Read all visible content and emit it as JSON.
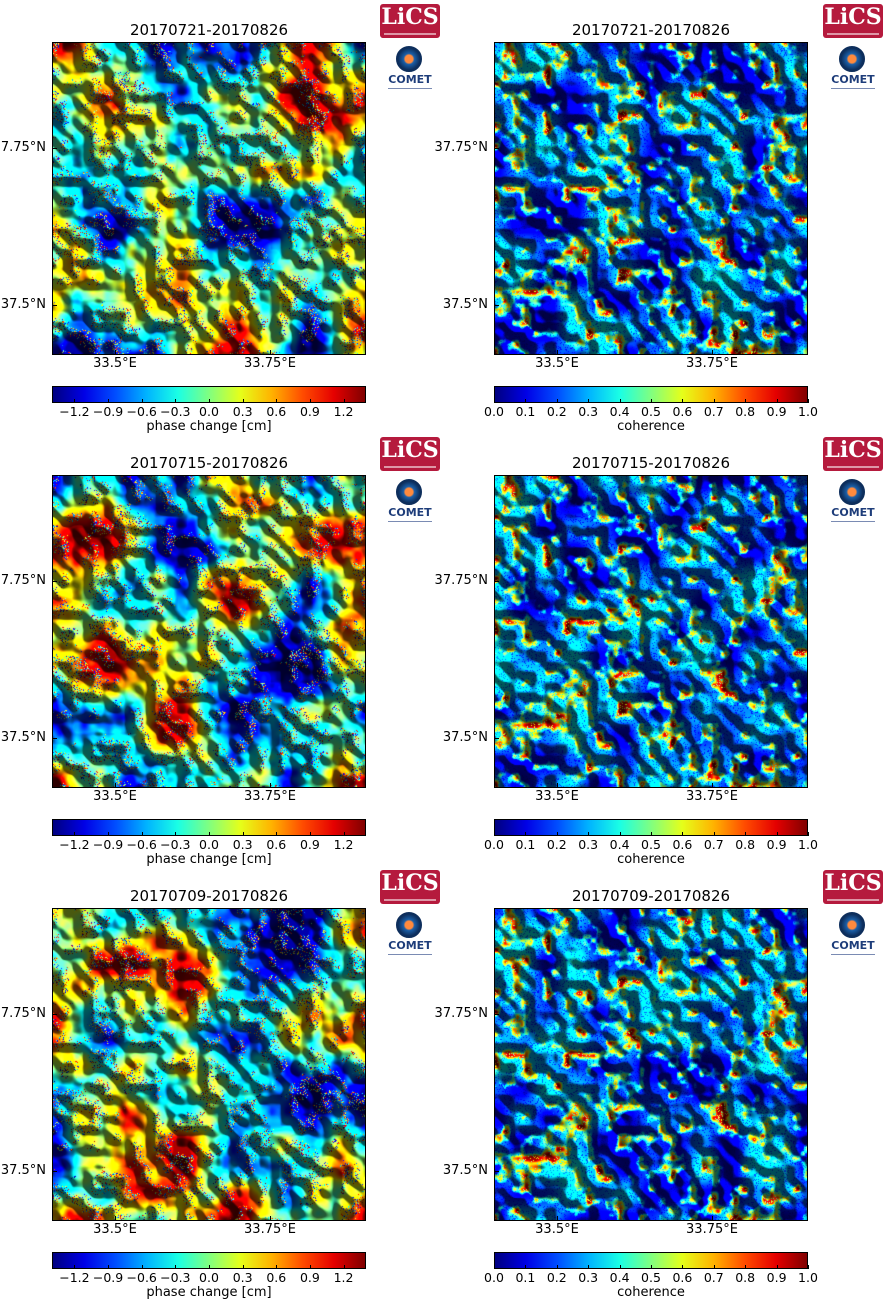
{
  "logos": {
    "lics_text": "LiCS",
    "comet_text": "COMET"
  },
  "panels": [
    {
      "title": "20170721-20170826",
      "type": "phase",
      "seed": 11
    },
    {
      "title": "20170721-20170826",
      "type": "coherence",
      "seed": 12
    },
    {
      "title": "20170715-20170826",
      "type": "phase",
      "seed": 21
    },
    {
      "title": "20170715-20170826",
      "type": "coherence",
      "seed": 22
    },
    {
      "title": "20170709-20170826",
      "type": "phase",
      "seed": 31
    },
    {
      "title": "20170709-20170826",
      "type": "coherence",
      "seed": 32
    }
  ],
  "axes": {
    "y_ticks": [
      "37.75°N",
      "37.5°N"
    ],
    "x_ticks": [
      "33.5°E",
      "33.75°E"
    ]
  },
  "colorbars": {
    "phase": {
      "label": "phase change [cm]",
      "ticks": [
        "−1.2",
        "−0.9",
        "−0.6",
        "−0.3",
        "0.0",
        "0.3",
        "0.6",
        "0.9",
        "1.2"
      ],
      "range": [
        -1.4,
        1.4
      ],
      "tick_values": [
        -1.2,
        -0.9,
        -0.6,
        -0.3,
        0.0,
        0.3,
        0.6,
        0.9,
        1.2
      ]
    },
    "coherence": {
      "label": "coherence",
      "ticks": [
        "0.0",
        "0.1",
        "0.2",
        "0.3",
        "0.4",
        "0.5",
        "0.6",
        "0.7",
        "0.8",
        "0.9",
        "1.0"
      ],
      "range": [
        0.0,
        1.0
      ],
      "tick_values": [
        0.0,
        0.1,
        0.2,
        0.3,
        0.4,
        0.5,
        0.6,
        0.7,
        0.8,
        0.9,
        1.0
      ]
    }
  },
  "colors": {
    "jet": [
      "#00007f",
      "#0000ff",
      "#007fff",
      "#00ffff",
      "#7fff7f",
      "#ffff00",
      "#ff7f00",
      "#ff0000",
      "#7f0000"
    ]
  }
}
